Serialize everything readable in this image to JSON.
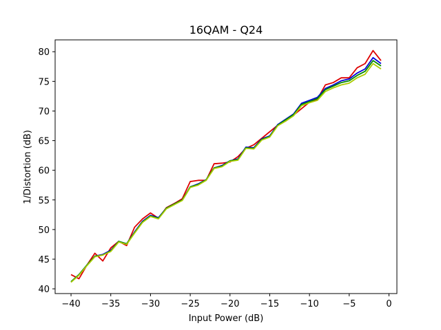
{
  "chart_data": {
    "type": "line",
    "title": "16QAM - Q24",
    "xlabel": "Input Power (dB)",
    "ylabel": "1/Distortion (dB)",
    "xlim": [
      -42,
      1
    ],
    "ylim": [
      39.2,
      82
    ],
    "xticks": [
      -40,
      -35,
      -30,
      -25,
      -20,
      -15,
      -10,
      -5,
      0
    ],
    "yticks": [
      40,
      45,
      50,
      55,
      60,
      65,
      70,
      75,
      80
    ],
    "grid": false,
    "legend": "none",
    "x": [
      -40,
      -39,
      -38,
      -37,
      -36,
      -35,
      -34,
      -33,
      -32,
      -31,
      -30,
      -29,
      -28,
      -27,
      -26,
      -25,
      -24,
      -23,
      -22,
      -21,
      -20,
      -19,
      -18,
      -17,
      -16,
      -15,
      -14,
      -13,
      -12,
      -11,
      -10,
      -9,
      -8,
      -7,
      -6,
      -5,
      -4,
      -3,
      -2,
      -1
    ],
    "series": [
      {
        "color": "#dd0000",
        "values": [
          42.4,
          41.7,
          44.0,
          46.0,
          44.7,
          46.9,
          48.0,
          47.3,
          50.4,
          51.8,
          52.8,
          51.9,
          53.7,
          54.4,
          55.2,
          58.1,
          58.3,
          58.3,
          61.1,
          61.2,
          61.4,
          62.3,
          63.7,
          64.3,
          65.4,
          66.5,
          67.6,
          68.3,
          69.3,
          70.4,
          71.5,
          72.0,
          74.4,
          74.8,
          75.6,
          75.6,
          77.3,
          78.0,
          80.2,
          78.5
        ]
      },
      {
        "color": "#0000dd",
        "values": [
          41.2,
          42.4,
          44.0,
          45.5,
          45.8,
          46.5,
          48.0,
          47.6,
          49.6,
          51.4,
          52.4,
          52.0,
          53.6,
          54.3,
          55.0,
          57.2,
          57.7,
          58.4,
          60.4,
          60.8,
          61.6,
          61.9,
          63.9,
          63.8,
          65.3,
          65.8,
          67.7,
          68.6,
          69.5,
          71.3,
          71.8,
          72.3,
          73.8,
          74.4,
          75.1,
          75.4,
          76.4,
          77.1,
          79.0,
          78.0
        ]
      },
      {
        "color": "#008800",
        "values": [
          41.2,
          42.4,
          44.0,
          45.5,
          45.7,
          46.4,
          48.0,
          47.6,
          49.5,
          51.3,
          52.3,
          51.9,
          53.6,
          54.3,
          55.0,
          57.2,
          57.6,
          58.4,
          60.4,
          60.7,
          61.6,
          61.8,
          63.8,
          63.7,
          65.2,
          65.7,
          67.6,
          68.5,
          69.4,
          71.1,
          71.6,
          72.1,
          73.6,
          74.2,
          74.8,
          75.1,
          76.0,
          76.7,
          78.5,
          77.6
        ]
      },
      {
        "color": "#aacc00",
        "values": [
          41.1,
          42.3,
          43.9,
          45.4,
          45.7,
          46.3,
          47.9,
          47.5,
          49.4,
          51.2,
          52.2,
          51.8,
          53.5,
          54.2,
          54.9,
          57.1,
          57.5,
          58.3,
          60.3,
          60.6,
          61.5,
          61.7,
          63.7,
          63.6,
          65.1,
          65.6,
          67.5,
          68.3,
          69.2,
          70.9,
          71.4,
          71.8,
          73.3,
          73.9,
          74.4,
          74.7,
          75.6,
          76.2,
          78.0,
          77.1
        ]
      }
    ]
  }
}
